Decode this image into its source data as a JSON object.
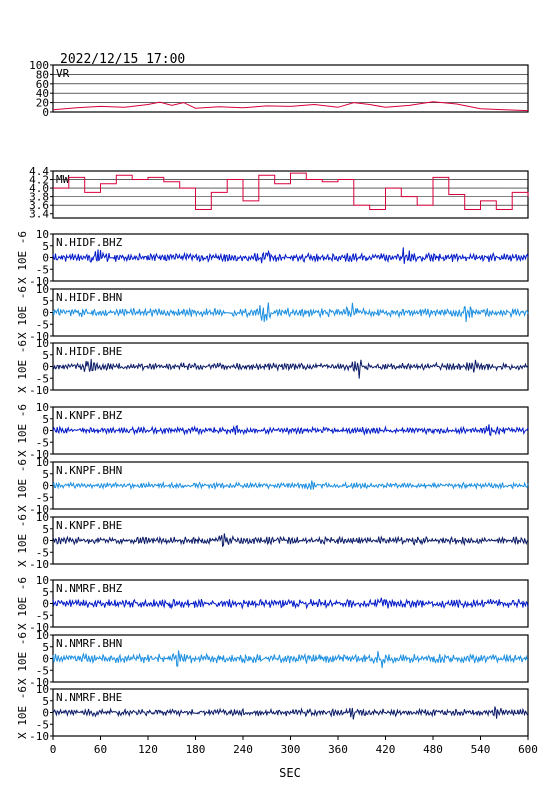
{
  "title": "2022/12/15  17:00",
  "x_axis_label": "SEC",
  "x_ticks": [
    "0",
    "60",
    "120",
    "180",
    "240",
    "300",
    "360",
    "420",
    "480",
    "540",
    "600"
  ],
  "colors": {
    "frame": "#000000",
    "red": "#d8003a",
    "dark": "#0a1a66",
    "blue": "#0018c8",
    "light": "#1c8fe0"
  },
  "chart_data": [
    {
      "type": "line",
      "panel_label": "VR",
      "ylim": [
        0,
        100
      ],
      "y_ticks": [
        "0",
        "20",
        "40",
        "60",
        "80",
        "100"
      ],
      "grid": true,
      "color": "#d8003a",
      "x": [
        0,
        30,
        60,
        90,
        120,
        135,
        150,
        165,
        180,
        210,
        240,
        270,
        300,
        330,
        360,
        380,
        400,
        420,
        450,
        480,
        510,
        540,
        570,
        600
      ],
      "values": [
        5,
        9,
        12,
        10,
        16,
        21,
        14,
        20,
        8,
        11,
        9,
        13,
        12,
        16,
        10,
        20,
        16,
        10,
        14,
        22,
        17,
        7,
        5,
        3
      ]
    },
    {
      "type": "line",
      "panel_label": "MW",
      "ylim": [
        3.3,
        4.4
      ],
      "y_ticks": [
        "3.4",
        "3.6",
        "3.8",
        "4.0",
        "4.2",
        "4.4"
      ],
      "grid": true,
      "color": "#d8003a",
      "x": [
        0,
        20,
        40,
        60,
        80,
        100,
        120,
        140,
        160,
        180,
        200,
        220,
        240,
        260,
        280,
        300,
        320,
        340,
        360,
        380,
        400,
        420,
        440,
        460,
        480,
        500,
        520,
        540,
        560,
        580,
        600
      ],
      "values": [
        4.0,
        4.25,
        3.9,
        4.1,
        4.3,
        4.2,
        4.25,
        4.15,
        4.0,
        3.5,
        3.9,
        4.2,
        3.7,
        4.3,
        4.1,
        4.35,
        4.2,
        4.15,
        4.2,
        3.6,
        3.5,
        4.0,
        3.8,
        3.6,
        4.25,
        3.85,
        3.5,
        3.7,
        3.5,
        3.9,
        3.8
      ]
    },
    {
      "type": "line",
      "panel_label": "N.HIDF.BHZ",
      "ylabel": "X 10E -6",
      "ylim": [
        -10,
        10
      ],
      "y_ticks": [
        "-10",
        "-5",
        "0",
        "5",
        "10"
      ],
      "color": "#0018c8",
      "amplitude": 1.5,
      "bursts": [
        [
          55,
          3.0
        ],
        [
          270,
          1.5
        ],
        [
          445,
          2.5
        ]
      ]
    },
    {
      "type": "line",
      "panel_label": "N.HIDF.BHN",
      "ylabel": "X 10E -6",
      "ylim": [
        -10,
        10
      ],
      "y_ticks": [
        "-10",
        "-5",
        "0",
        "5",
        "10"
      ],
      "color": "#1c8fe0",
      "amplitude": 1.5,
      "bursts": [
        [
          268,
          3.5
        ],
        [
          378,
          3.0
        ],
        [
          525,
          2.5
        ]
      ]
    },
    {
      "type": "line",
      "panel_label": "N.HIDF.BHE",
      "ylabel": "X 10E -6",
      "ylim": [
        -10,
        10
      ],
      "y_ticks": [
        "-10",
        "-5",
        "0",
        "5",
        "10"
      ],
      "color": "#0a1a66",
      "amplitude": 1.2,
      "bursts": [
        [
          45,
          2.0
        ],
        [
          385,
          3.5
        ],
        [
          530,
          1.5
        ]
      ]
    },
    {
      "type": "line",
      "panel_label": "N.KNPF.BHZ",
      "ylabel": "X 10E -6",
      "ylim": [
        -10,
        10
      ],
      "y_ticks": [
        "-10",
        "-5",
        "0",
        "5",
        "10"
      ],
      "color": "#0018c8",
      "amplitude": 1.2,
      "bursts": [
        [
          230,
          1.5
        ],
        [
          555,
          1.5
        ]
      ]
    },
    {
      "type": "line",
      "panel_label": "N.KNPF.BHN",
      "ylabel": "X 10E -6",
      "ylim": [
        -10,
        10
      ],
      "y_ticks": [
        "-10",
        "-5",
        "0",
        "5",
        "10"
      ],
      "color": "#1c8fe0",
      "amplitude": 1.0,
      "bursts": [
        [
          325,
          1.0
        ]
      ]
    },
    {
      "type": "line",
      "panel_label": "N.KNPF.BHE",
      "ylabel": "X 10E -6",
      "ylim": [
        -10,
        10
      ],
      "y_ticks": [
        "-10",
        "-5",
        "0",
        "5",
        "10"
      ],
      "color": "#0a1a66",
      "amplitude": 1.3,
      "bursts": [
        [
          215,
          1.5
        ],
        [
          460,
          1.2
        ]
      ]
    },
    {
      "type": "line",
      "panel_label": "N.NMRF.BHZ",
      "ylabel": "X 10E -6",
      "ylim": [
        -10,
        10
      ],
      "y_ticks": [
        "-10",
        "-5",
        "0",
        "5",
        "10"
      ],
      "color": "#0018c8",
      "amplitude": 1.5,
      "bursts": [
        [
          150,
          1.8
        ],
        [
          415,
          2.0
        ]
      ]
    },
    {
      "type": "line",
      "panel_label": "N.NMRF.BHN",
      "ylabel": "X 10E -6",
      "ylim": [
        -10,
        10
      ],
      "y_ticks": [
        "-10",
        "-5",
        "0",
        "5",
        "10"
      ],
      "color": "#1c8fe0",
      "amplitude": 1.6,
      "bursts": [
        [
          155,
          2.0
        ],
        [
          415,
          2.0
        ]
      ]
    },
    {
      "type": "line",
      "panel_label": "N.NMRF.BHE",
      "ylabel": "X 10E -6",
      "ylim": [
        -10,
        10
      ],
      "y_ticks": [
        "-10",
        "-5",
        "0",
        "5",
        "10"
      ],
      "color": "#0a1a66",
      "amplitude": 1.2,
      "bursts": [
        [
          378,
          1.5
        ],
        [
          560,
          1.5
        ]
      ]
    }
  ]
}
